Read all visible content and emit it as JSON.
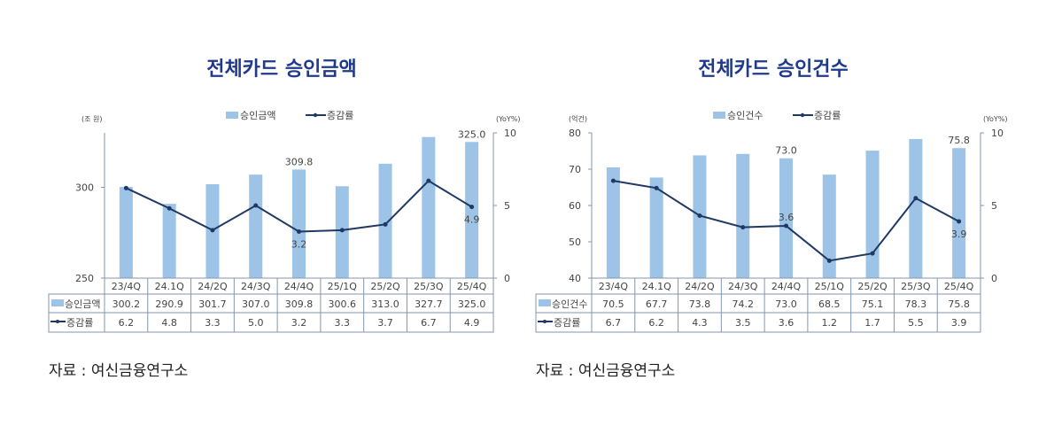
{
  "colors": {
    "bar": "#9dc3e6",
    "line": "#1f3864",
    "title": "#1f3a8a",
    "axis": "#8496b0"
  },
  "chart_data": [
    {
      "type": "bar",
      "title": "전체카드  승인금액",
      "source": "자료  :  여신금융연구소",
      "left_unit": "(조 원)",
      "right_unit": "(YoY%)",
      "categories": [
        "23/4Q",
        "24.1Q",
        "24/2Q",
        "24/3Q",
        "24/4Q",
        "25/1Q",
        "25/2Q",
        "25/3Q",
        "25/4Q"
      ],
      "series": [
        {
          "name": "승인금액",
          "type": "bar",
          "axis": "left",
          "values": [
            300.2,
            290.9,
            301.7,
            307.0,
            309.8,
            300.6,
            313.0,
            327.7,
            325.0
          ]
        },
        {
          "name": "증감률",
          "type": "line",
          "axis": "right",
          "values": [
            6.2,
            4.8,
            3.3,
            5.0,
            3.2,
            3.3,
            3.7,
            6.7,
            4.9
          ]
        }
      ],
      "ylim_left": [
        250,
        330
      ],
      "yticks_left": [
        250,
        300
      ],
      "ylim_right": [
        0,
        10
      ],
      "yticks_right": [
        0,
        5,
        10
      ],
      "bar_labels": [
        {
          "index": 4,
          "text": "309.8"
        },
        {
          "index": 8,
          "text": "325.0"
        }
      ],
      "line_labels": [
        {
          "index": 4,
          "text": "3.2",
          "pos": "below"
        },
        {
          "index": 8,
          "text": "4.9",
          "pos": "below"
        }
      ],
      "legend": "top",
      "table_values": {
        "bar": [
          "300.2",
          "290.9",
          "301.7",
          "307.0",
          "309.8",
          "300.6",
          "313.0",
          "327.7",
          "325.0"
        ],
        "line": [
          "6.2",
          "4.8",
          "3.3",
          "5.0",
          "3.2",
          "3.3",
          "3.7",
          "6.7",
          "4.9"
        ]
      }
    },
    {
      "type": "bar",
      "title": "전체카드  승인건수",
      "source": "자료  :  여신금융연구소",
      "left_unit": "(억건)",
      "right_unit": "(YoY%)",
      "categories": [
        "23/4Q",
        "24.1Q",
        "24/2Q",
        "24/3Q",
        "24/4Q",
        "25/1Q",
        "25/2Q",
        "25/3Q",
        "25/4Q"
      ],
      "series": [
        {
          "name": "승인건수",
          "type": "bar",
          "axis": "left",
          "values": [
            70.5,
            67.7,
            73.8,
            74.2,
            73.0,
            68.5,
            75.1,
            78.3,
            75.8
          ]
        },
        {
          "name": "증감률",
          "type": "line",
          "axis": "right",
          "values": [
            6.7,
            6.2,
            4.3,
            3.5,
            3.6,
            1.2,
            1.7,
            5.5,
            3.9
          ]
        }
      ],
      "ylim_left": [
        40,
        80
      ],
      "yticks_left": [
        40,
        50,
        60,
        70,
        80
      ],
      "ylim_right": [
        0,
        10
      ],
      "yticks_right": [
        0,
        5,
        10
      ],
      "bar_labels": [
        {
          "index": 4,
          "text": "73.0"
        },
        {
          "index": 8,
          "text": "75.8"
        }
      ],
      "line_labels": [
        {
          "index": 4,
          "text": "3.6",
          "pos": "above"
        },
        {
          "index": 8,
          "text": "3.9",
          "pos": "below"
        }
      ],
      "legend": "top",
      "table_values": {
        "bar": [
          "70.5",
          "67.7",
          "73.8",
          "74.2",
          "73.0",
          "68.5",
          "75.1",
          "78.3",
          "75.8"
        ],
        "line": [
          "6.7",
          "6.2",
          "4.3",
          "3.5",
          "3.6",
          "1.2",
          "1.7",
          "5.5",
          "3.9"
        ]
      }
    }
  ]
}
